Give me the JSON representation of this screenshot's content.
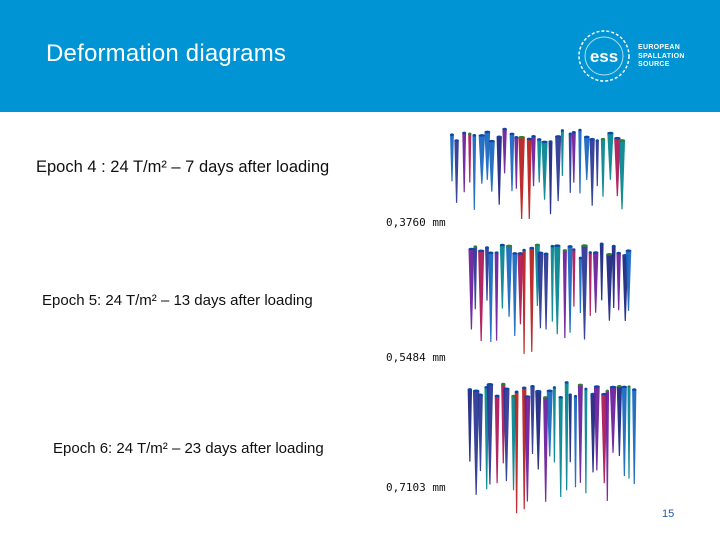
{
  "slide": {
    "title": "Deformation diagrams",
    "page_number": "15"
  },
  "logo": {
    "line1": "EUROPEAN",
    "line2": "SPALLATION",
    "line3": "SOURCE",
    "mark": "ess"
  },
  "epochs": [
    {
      "label": "Epoch 4 : 24 T/m² – 7 days after loading",
      "deformation": "0,3760 mm"
    },
    {
      "label": "Epoch 5: 24 T/m² – 13 days after loading",
      "deformation": "0,5484 mm"
    },
    {
      "label": "Epoch 6: 24 T/m² – 23 days after loading",
      "deformation": "0,7103 mm"
    }
  ],
  "colors": {
    "header": "#0094d4",
    "deformation_palette": [
      "#1a237e",
      "#283593",
      "#1565c0",
      "#00838f",
      "#6a1b9a",
      "#ad1457",
      "#b71c1c",
      "#2e7d32"
    ]
  }
}
